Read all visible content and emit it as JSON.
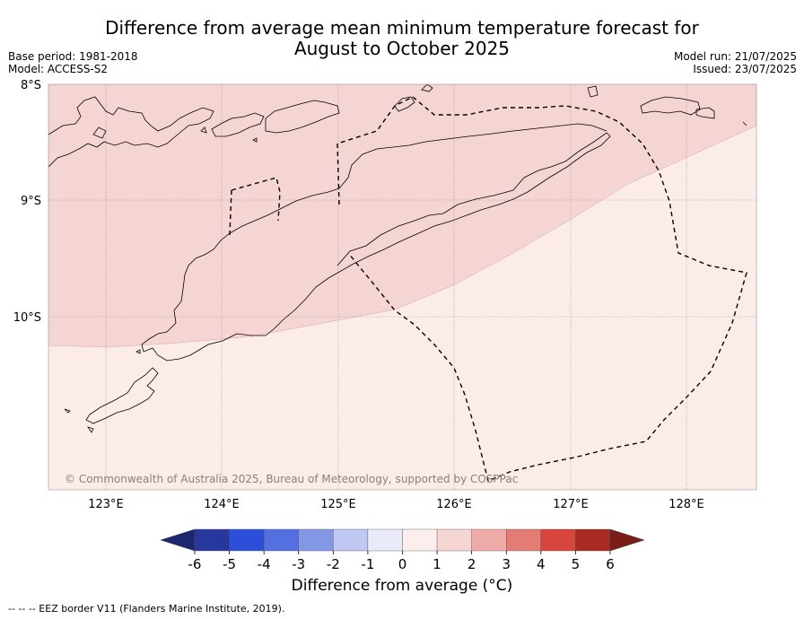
{
  "header": {
    "title_line1": "Difference from average mean minimum temperature forecast for",
    "title_line2": "August to October 2025",
    "base_period": "Base period: 1981-2018",
    "model": "Model: ACCESS-S2",
    "model_run": "Model run: 21/07/2025",
    "issued": "Issued: 23/07/2025"
  },
  "map": {
    "lat_labels": [
      "8°S",
      "9°S",
      "10°S"
    ],
    "lon_labels": [
      "123°E",
      "124°E",
      "125°E",
      "126°E",
      "127°E",
      "128°E"
    ],
    "copyright": "© Commonwealth of Australia 2025, Bureau of Meteorology, supported by COSPPac",
    "regions": [
      {
        "name": "anomaly 1 to 2",
        "color": "#f5d5d3"
      },
      {
        "name": "anomaly 0 to 1",
        "color": "#fbebe9"
      }
    ]
  },
  "colorbar": {
    "ticks": [
      "-6",
      "-5",
      "-4",
      "-3",
      "-2",
      "-1",
      "0",
      "1",
      "2",
      "3",
      "4",
      "5",
      "6"
    ],
    "colors": [
      "#27379c",
      "#2d4ed8",
      "#5470e0",
      "#8497e6",
      "#bfc8f2",
      "#e9ebfa",
      "#fbeeed",
      "#f6d6d4",
      "#eeaba7",
      "#e37c74",
      "#d8453c",
      "#a82a22"
    ],
    "low_extend_color": "#1c2770",
    "high_extend_color": "#7a1d17",
    "label": "Difference from average (°C)"
  },
  "footnote": "--  --  -- EEZ border V11 (Flanders Marine Institute, 2019)."
}
